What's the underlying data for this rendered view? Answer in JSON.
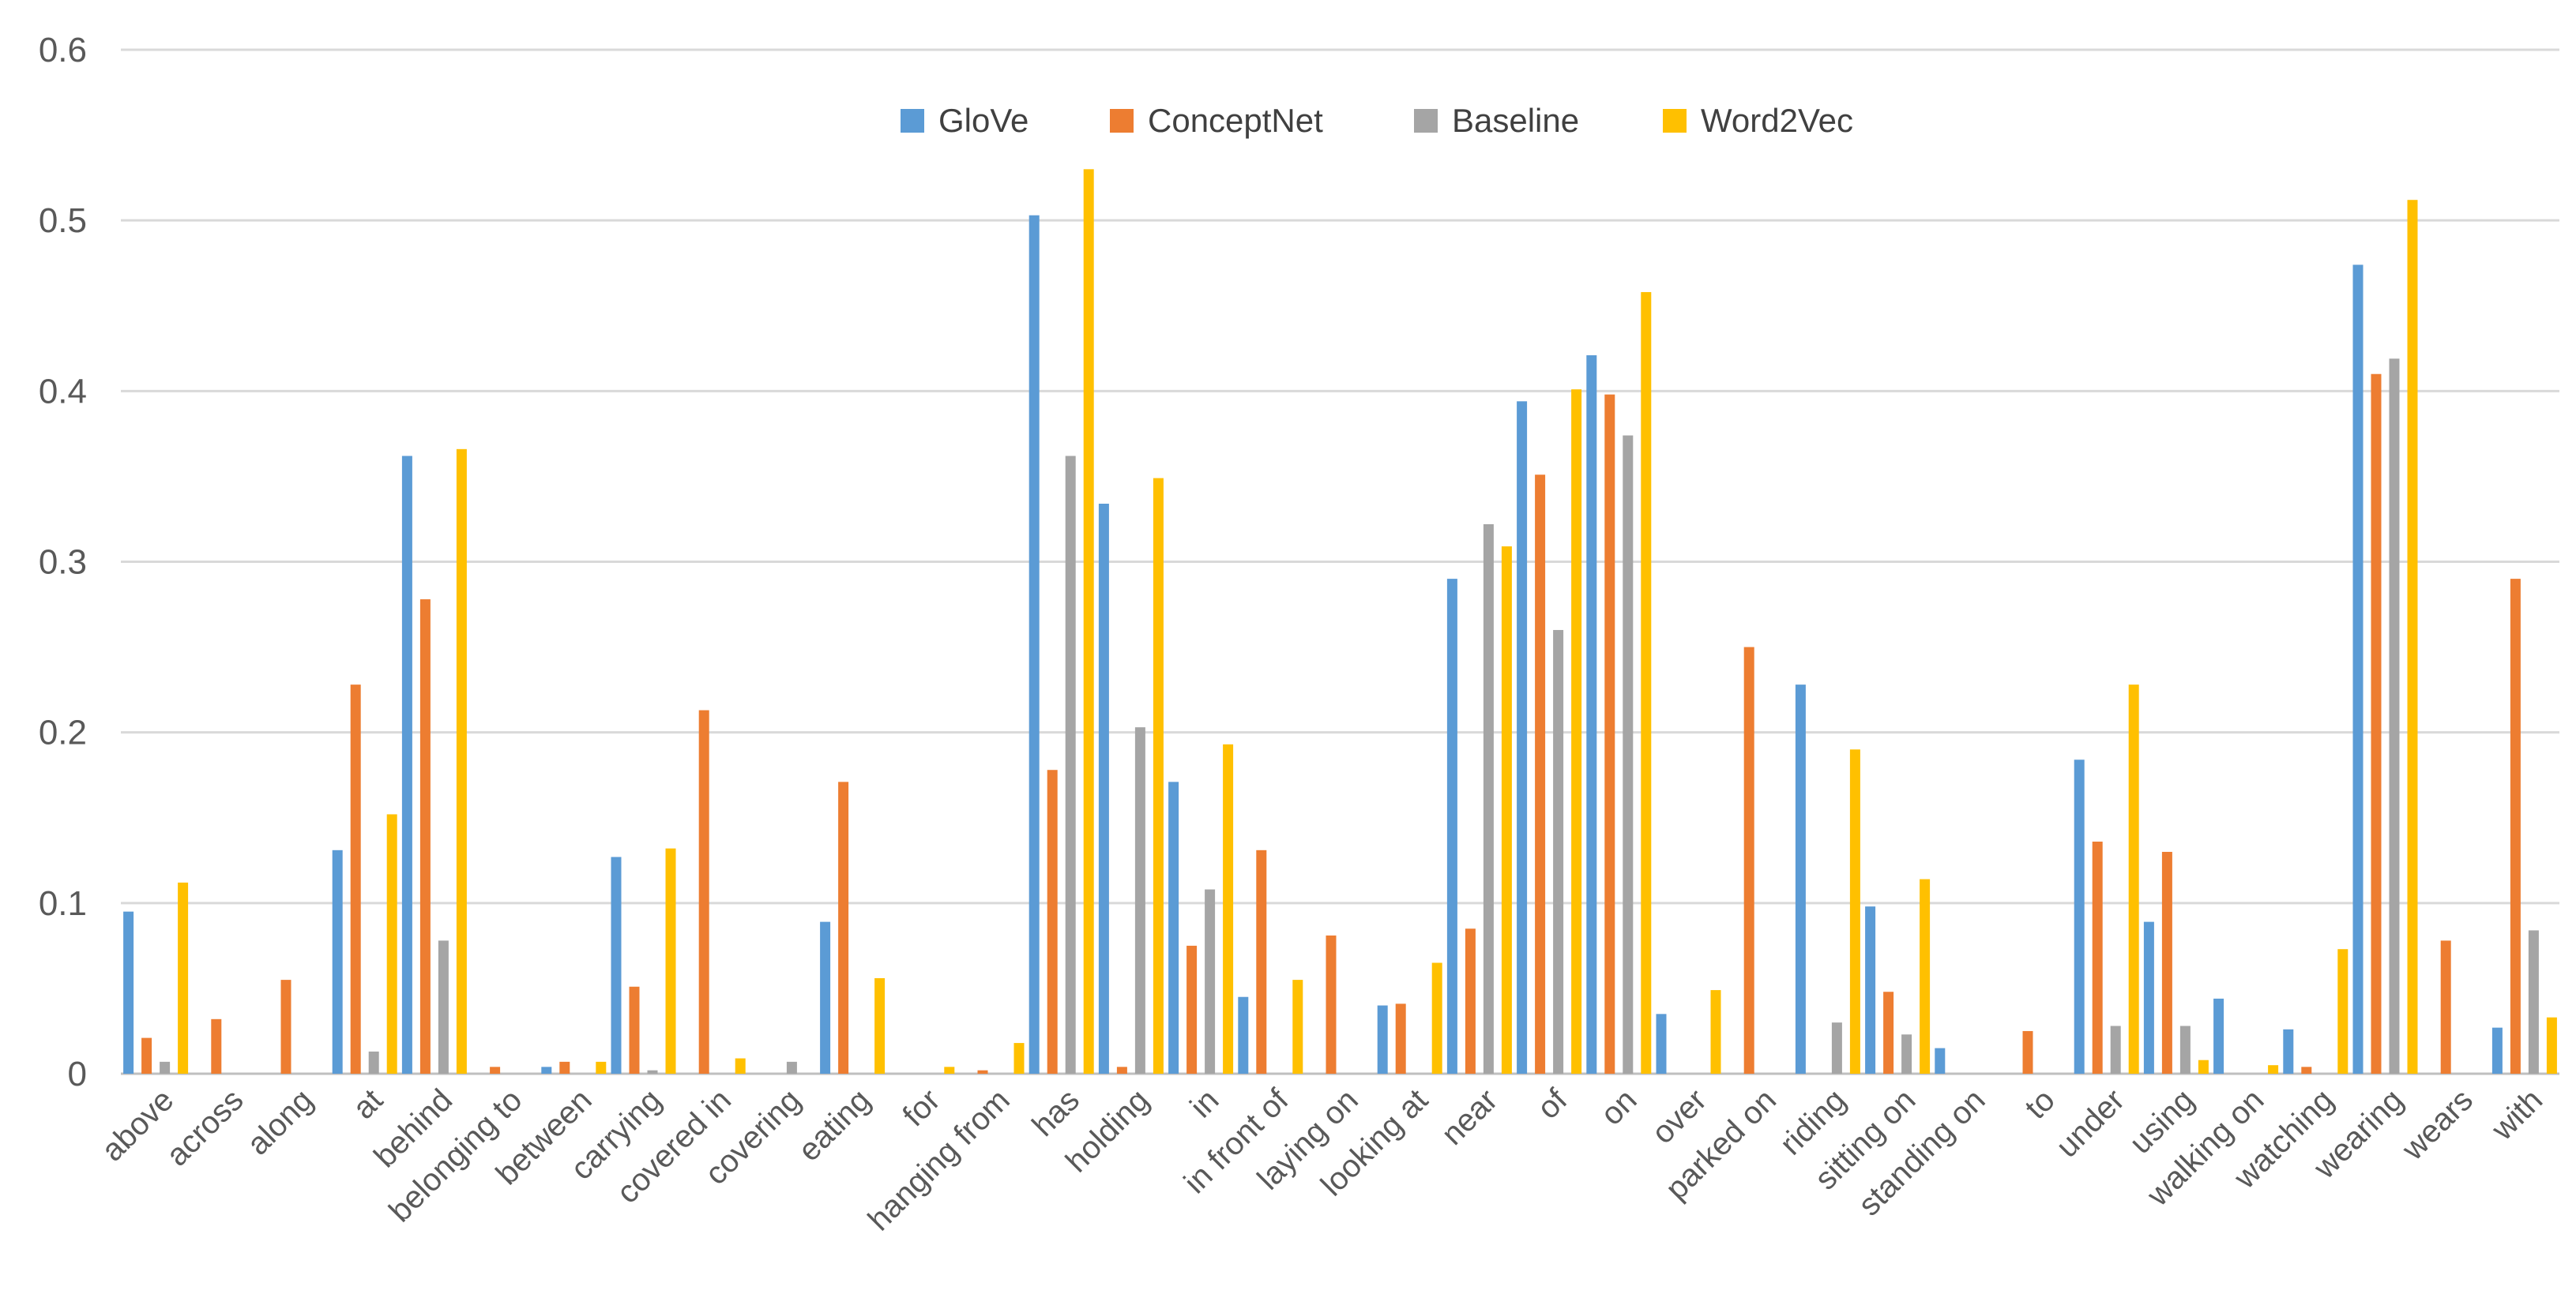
{
  "chart_data": {
    "type": "bar",
    "title": "",
    "xlabel": "",
    "ylabel": "",
    "ylim": [
      0,
      0.6
    ],
    "yticks": [
      "0",
      "0.1",
      "0.2",
      "0.3",
      "0.4",
      "0.5",
      "0.6"
    ],
    "grid": true,
    "legend_position": "top-center",
    "categories": [
      "above",
      "across",
      "along",
      "at",
      "behind",
      "belonging to",
      "between",
      "carrying",
      "covered in",
      "covering",
      "eating",
      "for",
      "hanging from",
      "has",
      "holding",
      "in",
      "in front of",
      "laying on",
      "looking at",
      "near",
      "of",
      "on",
      "over",
      "parked on",
      "riding",
      "sitting on",
      "standing on",
      "to",
      "under",
      "using",
      "walking on",
      "watching",
      "wearing",
      "wears",
      "with"
    ],
    "series": [
      {
        "name": "GloVe",
        "color": "#5B9BD5",
        "values": [
          0.095,
          0,
          0,
          0.131,
          0.362,
          0,
          0.004,
          0.127,
          0,
          0,
          0.089,
          0,
          0,
          0.503,
          0.334,
          0.171,
          0.045,
          0,
          0.04,
          0.29,
          0.394,
          0.421,
          0.035,
          0,
          0.228,
          0.098,
          0.015,
          0,
          0.184,
          0.089,
          0.044,
          0.026,
          0.474,
          0,
          0.027
        ]
      },
      {
        "name": "ConceptNet",
        "color": "#ED7D31",
        "values": [
          0.021,
          0.032,
          0.055,
          0.228,
          0.278,
          0.004,
          0.007,
          0.051,
          0.213,
          0,
          0.171,
          0,
          0.002,
          0.178,
          0.004,
          0.075,
          0.131,
          0.081,
          0.041,
          0.085,
          0.351,
          0.398,
          0,
          0.25,
          0,
          0.048,
          0,
          0.025,
          0.136,
          0.13,
          0,
          0.004,
          0.41,
          0.078,
          0.29
        ]
      },
      {
        "name": "Baseline",
        "color": "#A5A5A5",
        "values": [
          0.007,
          0,
          0,
          0.013,
          0.078,
          0,
          0,
          0.002,
          0,
          0.007,
          0,
          0,
          0,
          0.362,
          0.203,
          0.108,
          0,
          0,
          0,
          0.322,
          0.26,
          0.374,
          0,
          0,
          0.03,
          0.023,
          0,
          0,
          0.028,
          0.028,
          0,
          0,
          0.419,
          0,
          0.084
        ]
      },
      {
        "name": "Word2Vec",
        "color": "#FFC000",
        "values": [
          0.112,
          0,
          0,
          0.152,
          0.366,
          0,
          0.007,
          0.132,
          0.009,
          0,
          0.056,
          0.004,
          0.018,
          0.53,
          0.349,
          0.193,
          0.055,
          0,
          0.065,
          0.309,
          0.401,
          0.458,
          0.049,
          0,
          0.19,
          0.114,
          0,
          0,
          0.228,
          0.008,
          0.005,
          0.073,
          0.512,
          0,
          0.033
        ]
      }
    ]
  }
}
